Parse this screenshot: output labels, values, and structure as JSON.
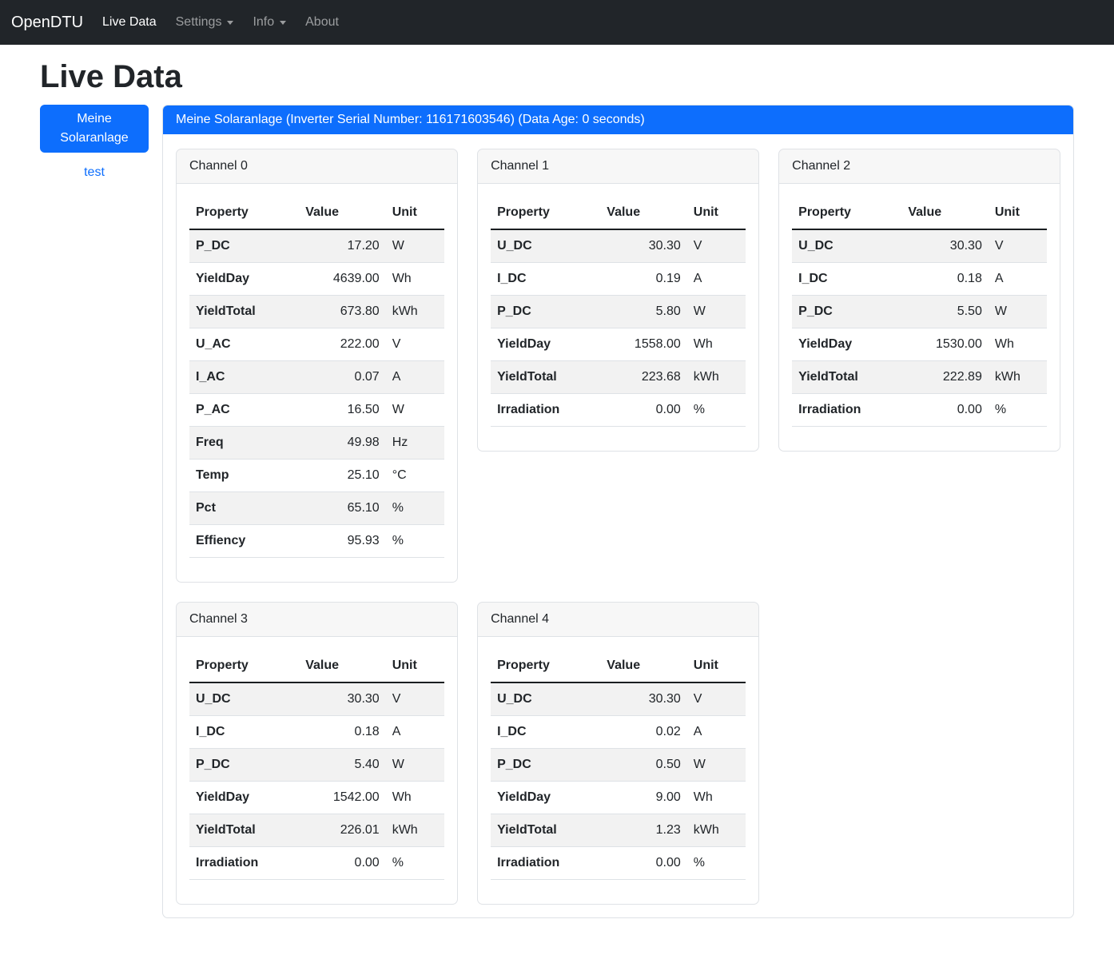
{
  "navbar": {
    "brand": "OpenDTU",
    "items": [
      {
        "label": "Live Data",
        "active": true,
        "has_dropdown": false
      },
      {
        "label": "Settings",
        "active": false,
        "has_dropdown": true
      },
      {
        "label": "Info",
        "active": false,
        "has_dropdown": true
      },
      {
        "label": "About",
        "active": false,
        "has_dropdown": false
      }
    ]
  },
  "page": {
    "title": "Live Data"
  },
  "sidebar": {
    "inverter_button_label": "Meine Solaranlage",
    "link_label": "test"
  },
  "panel": {
    "header": "Meine Solaranlage (Inverter Serial Number: 116171603546) (Data Age: 0 seconds)"
  },
  "table_headers": {
    "property": "Property",
    "value": "Value",
    "unit": "Unit"
  },
  "channels": [
    {
      "title": "Channel 0",
      "rows": [
        {
          "property": "P_DC",
          "value": "17.20",
          "unit": "W"
        },
        {
          "property": "YieldDay",
          "value": "4639.00",
          "unit": "Wh"
        },
        {
          "property": "YieldTotal",
          "value": "673.80",
          "unit": "kWh"
        },
        {
          "property": "U_AC",
          "value": "222.00",
          "unit": "V"
        },
        {
          "property": "I_AC",
          "value": "0.07",
          "unit": "A"
        },
        {
          "property": "P_AC",
          "value": "16.50",
          "unit": "W"
        },
        {
          "property": "Freq",
          "value": "49.98",
          "unit": "Hz"
        },
        {
          "property": "Temp",
          "value": "25.10",
          "unit": "°C"
        },
        {
          "property": "Pct",
          "value": "65.10",
          "unit": "%"
        },
        {
          "property": "Effiency",
          "value": "95.93",
          "unit": "%"
        }
      ]
    },
    {
      "title": "Channel 1",
      "rows": [
        {
          "property": "U_DC",
          "value": "30.30",
          "unit": "V"
        },
        {
          "property": "I_DC",
          "value": "0.19",
          "unit": "A"
        },
        {
          "property": "P_DC",
          "value": "5.80",
          "unit": "W"
        },
        {
          "property": "YieldDay",
          "value": "1558.00",
          "unit": "Wh"
        },
        {
          "property": "YieldTotal",
          "value": "223.68",
          "unit": "kWh"
        },
        {
          "property": "Irradiation",
          "value": "0.00",
          "unit": "%"
        }
      ]
    },
    {
      "title": "Channel 2",
      "rows": [
        {
          "property": "U_DC",
          "value": "30.30",
          "unit": "V"
        },
        {
          "property": "I_DC",
          "value": "0.18",
          "unit": "A"
        },
        {
          "property": "P_DC",
          "value": "5.50",
          "unit": "W"
        },
        {
          "property": "YieldDay",
          "value": "1530.00",
          "unit": "Wh"
        },
        {
          "property": "YieldTotal",
          "value": "222.89",
          "unit": "kWh"
        },
        {
          "property": "Irradiation",
          "value": "0.00",
          "unit": "%"
        }
      ]
    },
    {
      "title": "Channel 3",
      "rows": [
        {
          "property": "U_DC",
          "value": "30.30",
          "unit": "V"
        },
        {
          "property": "I_DC",
          "value": "0.18",
          "unit": "A"
        },
        {
          "property": "P_DC",
          "value": "5.40",
          "unit": "W"
        },
        {
          "property": "YieldDay",
          "value": "1542.00",
          "unit": "Wh"
        },
        {
          "property": "YieldTotal",
          "value": "226.01",
          "unit": "kWh"
        },
        {
          "property": "Irradiation",
          "value": "0.00",
          "unit": "%"
        }
      ]
    },
    {
      "title": "Channel 4",
      "rows": [
        {
          "property": "U_DC",
          "value": "30.30",
          "unit": "V"
        },
        {
          "property": "I_DC",
          "value": "0.02",
          "unit": "A"
        },
        {
          "property": "P_DC",
          "value": "0.50",
          "unit": "W"
        },
        {
          "property": "YieldDay",
          "value": "9.00",
          "unit": "Wh"
        },
        {
          "property": "YieldTotal",
          "value": "1.23",
          "unit": "kWh"
        },
        {
          "property": "Irradiation",
          "value": "0.00",
          "unit": "%"
        }
      ]
    }
  ],
  "colors": {
    "primary": "#0d6efd",
    "navbar_bg": "#212529",
    "stripe": "rgba(0,0,0,0.05)",
    "border": "#dee2e6"
  }
}
